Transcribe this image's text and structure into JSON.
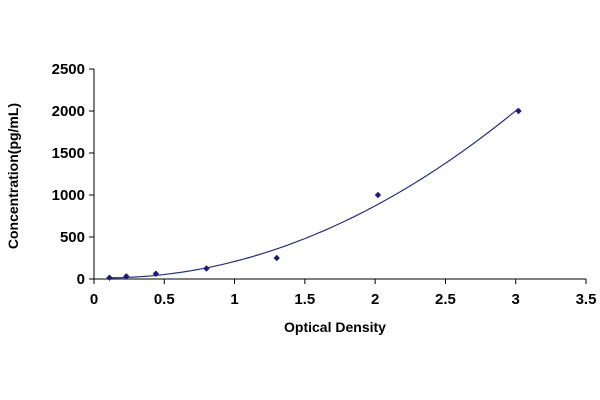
{
  "chart_data": {
    "type": "scatter",
    "title": "",
    "xlabel": "Optical Density",
    "ylabel": "Concentration(pg/mL)",
    "xlim": [
      0,
      3.5
    ],
    "ylim": [
      0,
      2500
    ],
    "x_ticks": [
      "0",
      "0.5",
      "1",
      "1.5",
      "2",
      "2.5",
      "3",
      "3.5"
    ],
    "y_ticks": [
      "0",
      "500",
      "1000",
      "1500",
      "2000",
      "2500"
    ],
    "grid": false,
    "legend": "none",
    "trendline": "polynomial",
    "series": [
      {
        "x": [
          0.11,
          0.23,
          0.44,
          0.8,
          1.3,
          2.02,
          3.02
        ],
        "y": [
          15.6,
          31.25,
          62.5,
          125,
          250,
          1000,
          2000
        ],
        "color": "#1f1a7a",
        "line_color": "#28307a"
      }
    ]
  }
}
